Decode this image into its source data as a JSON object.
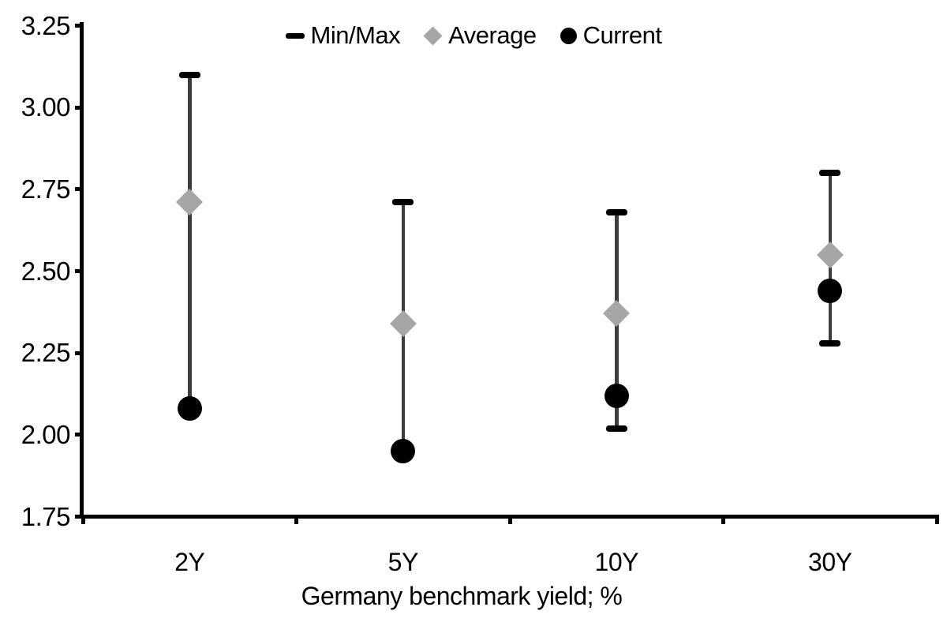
{
  "chart_data": {
    "type": "scatter",
    "subtype": "min-max-range-with-markers",
    "categories": [
      "2Y",
      "5Y",
      "10Y",
      "30Y"
    ],
    "series": [
      {
        "name": "Min/Max",
        "role": "range",
        "min": [
          2.08,
          1.95,
          2.02,
          2.28
        ],
        "max": [
          3.1,
          2.71,
          2.68,
          2.8
        ]
      },
      {
        "name": "Average",
        "role": "diamond-marker",
        "values": [
          2.71,
          2.34,
          2.37,
          2.55
        ]
      },
      {
        "name": "Current",
        "role": "circle-marker",
        "values": [
          2.08,
          1.95,
          2.12,
          2.44
        ]
      }
    ],
    "title": "",
    "xlabel": "Germany benchmark yield; %",
    "ylabel": "",
    "ylim": [
      1.75,
      3.25
    ],
    "ytick_step": 0.25,
    "ytick_labels": [
      "3.25",
      "3.00",
      "2.75",
      "2.50",
      "2.25",
      "2.00",
      "1.75"
    ],
    "grid": false,
    "legend_position": "top-center"
  },
  "legend": {
    "items": [
      {
        "label": "Min/Max",
        "marker": "minmax-dash-icon"
      },
      {
        "label": "Average",
        "marker": "average-diamond-icon"
      },
      {
        "label": "Current",
        "marker": "current-circle-icon"
      }
    ]
  },
  "colors": {
    "current_marker": "#000000",
    "average_marker": "#a6a6a6",
    "range_line": "#3d3d3d",
    "range_cap": "#000000",
    "axis": "#000000",
    "text": "#000000",
    "background": "#ffffff"
  }
}
